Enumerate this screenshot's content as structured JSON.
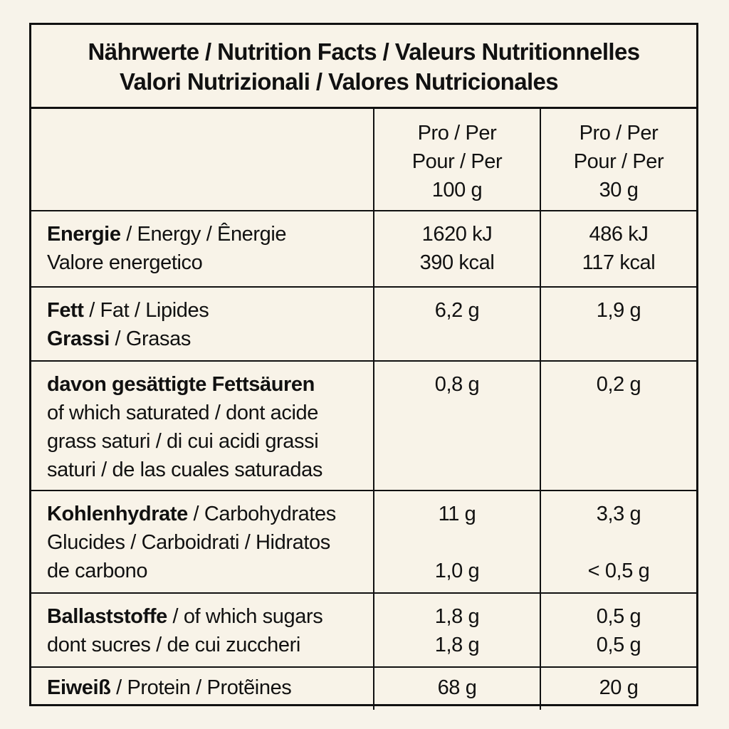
{
  "title": {
    "line1": "Nährwerte / Nutrition Facts / Valeurs Nutritionnelles",
    "line2": "Valori Nutrizionali / Valores Nutricionales"
  },
  "header": {
    "col100": [
      "Pro / Per",
      "Pour / Per",
      "100 g"
    ],
    "col30": [
      "Pro / Per",
      "Pour / Per",
      "30 g"
    ]
  },
  "rows": {
    "energy": {
      "label_bold": "Energie",
      "label_rest": " / Energy / Ênergie",
      "label_line2": "Valore energetico",
      "per100": [
        "1620 kJ",
        "390 kcal"
      ],
      "per30": [
        "486 kJ",
        "117 kcal"
      ]
    },
    "fat": {
      "label_bold": "Fett",
      "label_rest": " / Fat / Lipides",
      "label2_bold": "Grassi",
      "label2_rest": " / Grasas",
      "per100": "6,2 g",
      "per30": "1,9 g"
    },
    "saturated": {
      "label_bold": "davon gesättigte Fettsäuren",
      "label_lines": [
        "of which saturated / dont acide",
        "grass saturi / di cui acidi grassi",
        "saturi / de las cuales saturadas"
      ],
      "per100": "0,8 g",
      "per30": "0,2 g"
    },
    "carbs": {
      "label_bold": "Kohlenhydrate",
      "label_rest": " / Carbohydrates",
      "label_lines": [
        "Glucides / Carboidrati / Hidratos",
        "de carbono"
      ],
      "per100": [
        "11 g",
        "1,0 g"
      ],
      "per30": [
        "3,3 g",
        "< 0,5 g"
      ]
    },
    "fibre": {
      "label_bold": "Ballaststoffe",
      "label_rest": " / of which sugars",
      "label_line2": "dont sucres / de cui zuccheri",
      "per100": [
        "1,8 g",
        "1,8 g"
      ],
      "per30": [
        "0,5 g",
        "0,5 g"
      ]
    },
    "protein": {
      "label_bold": "Eiweiß",
      "label_rest": " / Protein / Protẽines",
      "per100": "68 g",
      "per30": "20 g"
    }
  }
}
